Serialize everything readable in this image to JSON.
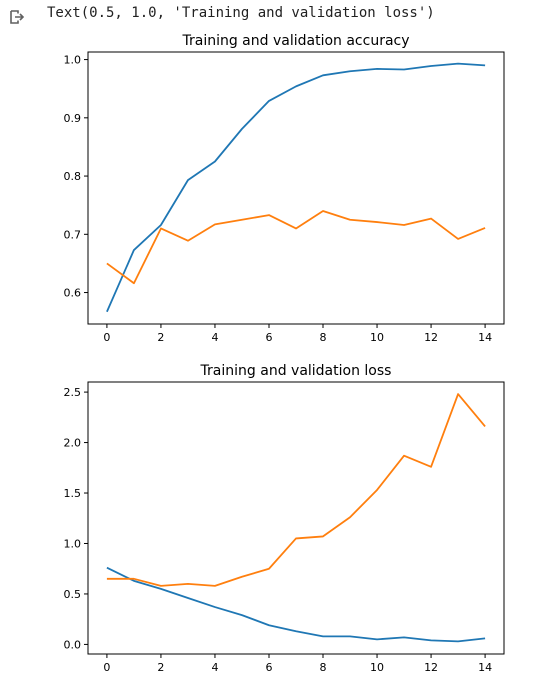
{
  "output": {
    "text": "Text(0.5, 1.0, 'Training and validation loss')"
  },
  "colors": {
    "training": "#1f77b4",
    "validation": "#ff7f0e"
  },
  "chart_data": [
    {
      "type": "line",
      "title": "Training and validation accuracy",
      "xlabel": "",
      "ylabel": "",
      "x": [
        0,
        1,
        2,
        3,
        4,
        5,
        6,
        7,
        8,
        9,
        10,
        11,
        12,
        13,
        14
      ],
      "xlim": [
        -0.7,
        14.7
      ],
      "ylim": [
        0.546,
        1.013
      ],
      "xticks": [
        0,
        2,
        4,
        6,
        8,
        10,
        12,
        14
      ],
      "yticks": [
        0.6,
        0.7,
        0.8,
        0.9,
        1.0
      ],
      "ytick_labels": [
        "0.6",
        "0.7",
        "0.8",
        "0.9",
        "1.0"
      ],
      "series": [
        {
          "color": "#1f77b4",
          "values": [
            0.567,
            0.673,
            0.716,
            0.793,
            0.825,
            0.881,
            0.929,
            0.954,
            0.973,
            0.98,
            0.984,
            0.983,
            0.989,
            0.993,
            0.99
          ]
        },
        {
          "color": "#ff7f0e",
          "values": [
            0.65,
            0.616,
            0.71,
            0.689,
            0.717,
            0.725,
            0.733,
            0.71,
            0.74,
            0.725,
            0.721,
            0.716,
            0.727,
            0.692,
            0.711
          ]
        }
      ],
      "grid": false
    },
    {
      "type": "line",
      "title": "Training and validation loss",
      "xlabel": "",
      "ylabel": "",
      "x": [
        0,
        1,
        2,
        3,
        4,
        5,
        6,
        7,
        8,
        9,
        10,
        11,
        12,
        13,
        14
      ],
      "xlim": [
        -0.7,
        14.7
      ],
      "ylim": [
        -0.095,
        2.6
      ],
      "xticks": [
        0,
        2,
        4,
        6,
        8,
        10,
        12,
        14
      ],
      "yticks": [
        0.0,
        0.5,
        1.0,
        1.5,
        2.0,
        2.5
      ],
      "ytick_labels": [
        "0.0",
        "0.5",
        "1.0",
        "1.5",
        "2.0",
        "2.5"
      ],
      "series": [
        {
          "color": "#1f77b4",
          "values": [
            0.76,
            0.63,
            0.55,
            0.46,
            0.37,
            0.29,
            0.19,
            0.13,
            0.08,
            0.08,
            0.05,
            0.07,
            0.04,
            0.03,
            0.06
          ]
        },
        {
          "color": "#ff7f0e",
          "values": [
            0.65,
            0.65,
            0.58,
            0.6,
            0.58,
            0.67,
            0.75,
            1.05,
            1.07,
            1.26,
            1.53,
            1.87,
            1.76,
            2.48,
            2.16
          ]
        }
      ],
      "grid": false
    }
  ]
}
